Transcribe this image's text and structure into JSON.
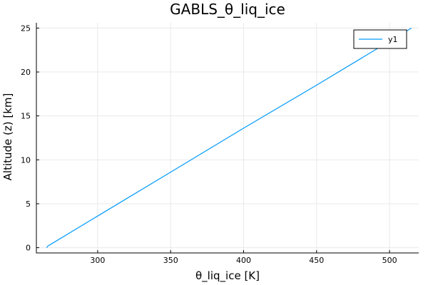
{
  "chart_data": {
    "type": "line",
    "title": "GABLS_θ_liq_ice",
    "xlabel": "θ_liq_ice [K]",
    "ylabel": "Altitude (z) [km]",
    "xlim": [
      258,
      520
    ],
    "ylim": [
      -0.6,
      25.6
    ],
    "xticks": [
      300,
      350,
      400,
      450,
      500
    ],
    "yticks": [
      0,
      5,
      10,
      15,
      20,
      25
    ],
    "grid": true,
    "legend_position": "top-right",
    "series": [
      {
        "name": "y1",
        "color": "#009af9",
        "x": [
          265.0,
          266.0,
          268.0,
          300.0,
          350.0,
          400.0,
          450.0,
          500.0,
          515.0
        ],
        "y": [
          0.0,
          0.2,
          0.4,
          3.6,
          8.6,
          13.6,
          18.5,
          23.5,
          25.0
        ]
      }
    ]
  }
}
